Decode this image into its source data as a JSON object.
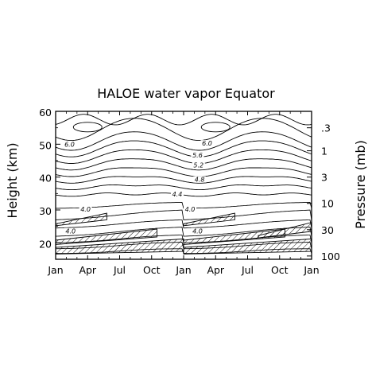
{
  "chart_data": {
    "type": "contour",
    "title": "HALOE water vapor  Equator",
    "ylabel_left": "Height (km)",
    "ylabel_right": "Pressure (mb)",
    "x_ticks": [
      "Jan",
      "Apr",
      "Jul",
      "Oct",
      "Jan",
      "Apr",
      "Jul",
      "Oct",
      "Jan"
    ],
    "y_ticks_left": [
      "20",
      "30",
      "40",
      "50",
      "60"
    ],
    "y_range_km": [
      15,
      60
    ],
    "y_ticks_right": [
      {
        "label": ".3",
        "km": 55
      },
      {
        "label": "1",
        "km": 48
      },
      {
        "label": "3",
        "km": 40
      },
      {
        "label": "10",
        "km": 32
      },
      {
        "label": "30",
        "km": 24
      },
      {
        "label": "100",
        "km": 16
      }
    ],
    "x_range_months": [
      0,
      24
    ],
    "contour_labels": [
      {
        "text": "6.0",
        "month": 1.3,
        "km": 49.5
      },
      {
        "text": "6.0",
        "month": 14.2,
        "km": 49.8
      },
      {
        "text": "5.6",
        "month": 13.3,
        "km": 46.2
      },
      {
        "text": "5.2",
        "month": 13.4,
        "km": 43.2
      },
      {
        "text": "4.8",
        "month": 13.5,
        "km": 38.8
      },
      {
        "text": "4.4",
        "month": 11.4,
        "km": 34.3
      },
      {
        "text": "4.0",
        "month": 2.8,
        "km": 29.7
      },
      {
        "text": "4.0",
        "month": 12.6,
        "km": 29.7
      },
      {
        "text": "4.0",
        "month": 1.4,
        "km": 23.1
      },
      {
        "text": "4.0",
        "month": 13.3,
        "km": 23.1
      }
    ]
  }
}
